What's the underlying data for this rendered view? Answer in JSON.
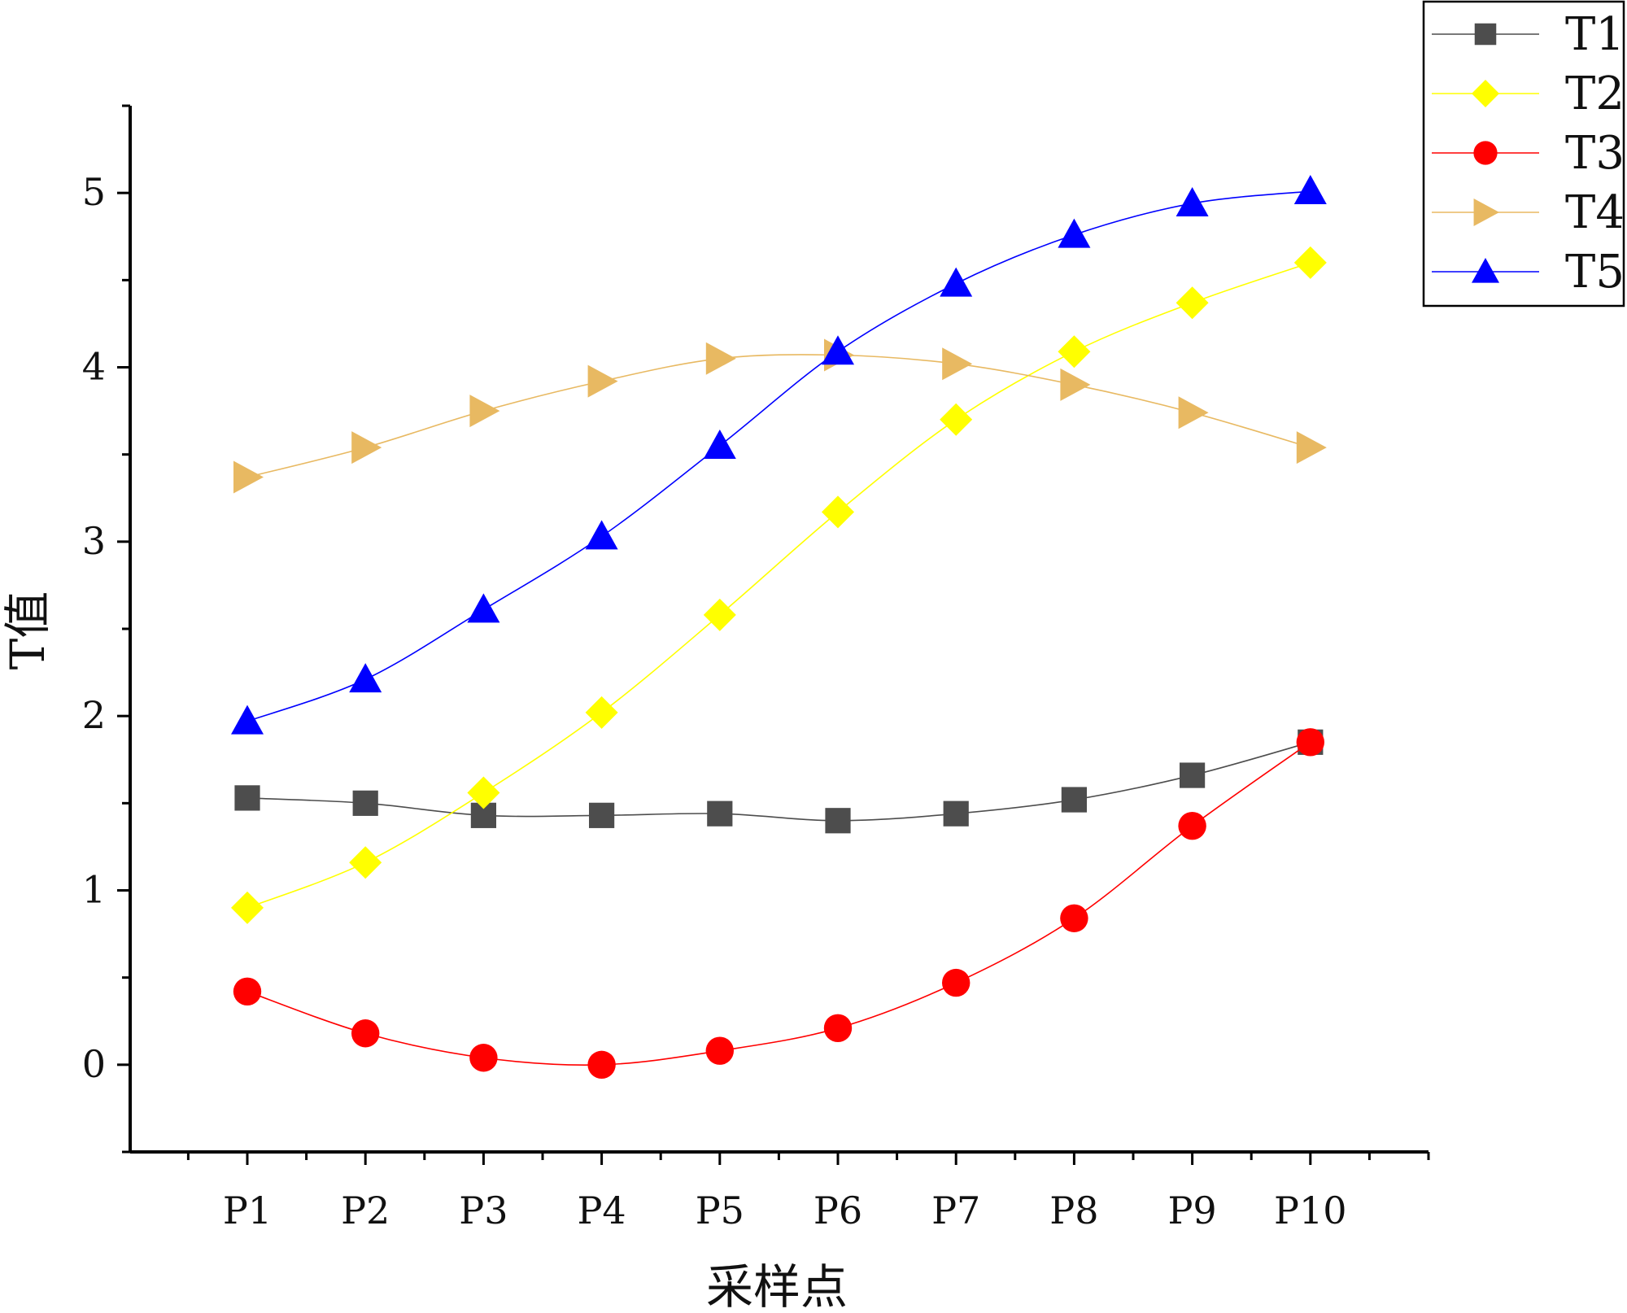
{
  "chart_data": {
    "type": "line",
    "title": "",
    "xlabel": "采样点",
    "ylabel": "T值",
    "categories": [
      "P1",
      "P2",
      "P3",
      "P4",
      "P5",
      "P6",
      "P7",
      "P8",
      "P9",
      "P10"
    ],
    "ylim": [
      -0.5,
      5.5
    ],
    "yticks": [
      0,
      1,
      2,
      3,
      4,
      5
    ],
    "grid": false,
    "legend_position": "top-right",
    "series": [
      {
        "name": "T1",
        "color": "#4d4d4d",
        "marker": "square",
        "values": [
          1.53,
          1.5,
          1.43,
          1.43,
          1.44,
          1.4,
          1.44,
          1.52,
          1.66,
          1.85
        ]
      },
      {
        "name": "T2",
        "color": "#ffff00",
        "marker": "diamond",
        "values": [
          0.9,
          1.16,
          1.56,
          2.02,
          2.58,
          3.17,
          3.7,
          4.09,
          4.37,
          4.6
        ]
      },
      {
        "name": "T3",
        "color": "#ff0000",
        "marker": "circle",
        "values": [
          0.42,
          0.18,
          0.04,
          0.0,
          0.08,
          0.21,
          0.47,
          0.84,
          1.37,
          1.85
        ]
      },
      {
        "name": "T4",
        "color": "#e8b962",
        "marker": "triangle-right",
        "values": [
          3.37,
          3.54,
          3.75,
          3.92,
          4.05,
          4.07,
          4.02,
          3.9,
          3.74,
          3.54
        ]
      },
      {
        "name": "T5",
        "color": "#0000ff",
        "marker": "triangle-up",
        "values": [
          1.97,
          2.21,
          2.61,
          3.03,
          3.55,
          4.09,
          4.48,
          4.76,
          4.94,
          5.01
        ]
      }
    ]
  }
}
